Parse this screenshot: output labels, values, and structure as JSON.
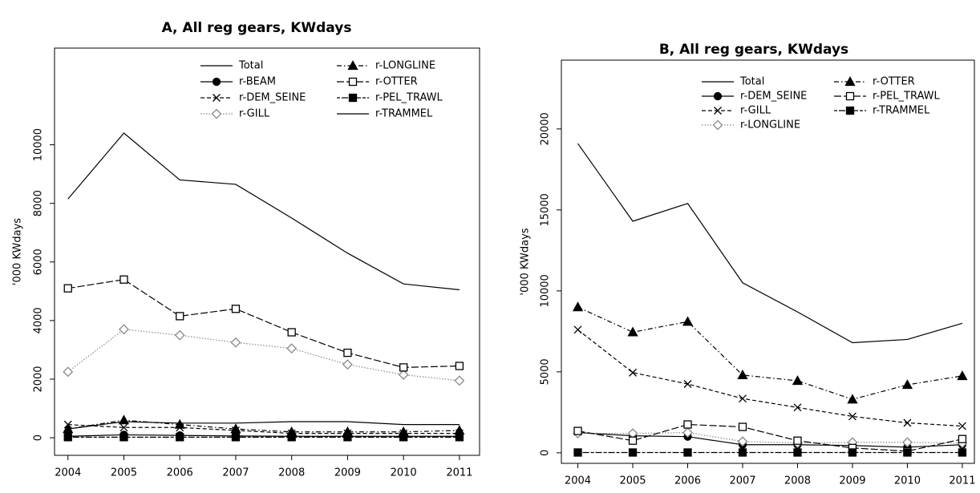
{
  "chart_data": [
    {
      "type": "line",
      "title": "A, All reg gears, KWdays",
      "y_label": "'000 KWdays",
      "x": [
        2004,
        2005,
        2006,
        2007,
        2008,
        2009,
        2010,
        2011
      ],
      "xlim": [
        2003.76,
        2011.36
      ],
      "xticks": [
        2004,
        2005,
        2006,
        2007,
        2008,
        2009,
        2010,
        2011
      ],
      "ylim": [
        -600,
        13300
      ],
      "yticks": [
        0,
        2000,
        4000,
        6000,
        8000,
        10000
      ],
      "grid": false,
      "series": [
        {
          "name": "Total",
          "color": "#000000",
          "marker": "none",
          "dash": "solid",
          "values": [
            8150,
            10400,
            8800,
            8650,
            7500,
            6300,
            5250,
            5050
          ]
        },
        {
          "name": "r-BEAM",
          "color": "#000000",
          "marker": "circle-filled",
          "dash": "solid",
          "values": [
            50,
            100,
            80,
            60,
            50,
            50,
            50,
            50
          ]
        },
        {
          "name": "r-DEM_SEINE",
          "color": "#000000",
          "marker": "cross",
          "dash": "dashed",
          "values": [
            450,
            350,
            350,
            250,
            150,
            150,
            150,
            150
          ]
        },
        {
          "name": "r-GILL",
          "color": "#888888",
          "marker": "diamond",
          "dash": "dotted",
          "values": [
            2250,
            3700,
            3500,
            3250,
            3050,
            2500,
            2150,
            1950
          ]
        },
        {
          "name": "r-LONGLINE",
          "color": "#000000",
          "marker": "triangle-filled",
          "dash": "dashdot",
          "values": [
            300,
            600,
            450,
            300,
            200,
            200,
            200,
            250
          ]
        },
        {
          "name": "r-OTTER",
          "color": "#000000",
          "marker": "square-open",
          "dash": "longdash",
          "values": [
            5100,
            5400,
            4150,
            4400,
            3600,
            2900,
            2400,
            2450
          ]
        },
        {
          "name": "r-PEL_TRAWL",
          "color": "#000000",
          "marker": "square-filled",
          "dash": "twodash",
          "values": [
            20,
            20,
            20,
            20,
            20,
            20,
            20,
            20
          ]
        },
        {
          "name": "r-TRAMMEL",
          "color": "#000000",
          "marker": "none",
          "dash": "solid",
          "values": [
            300,
            550,
            500,
            500,
            550,
            550,
            450,
            450
          ]
        }
      ]
    },
    {
      "type": "line",
      "title": "B, All reg gears, KWdays",
      "y_label": "'000 KWdays",
      "x": [
        2004,
        2005,
        2006,
        2007,
        2008,
        2009,
        2010,
        2011
      ],
      "xlim": [
        2003.7,
        2011.22
      ],
      "xticks": [
        2004,
        2005,
        2006,
        2007,
        2008,
        2009,
        2010,
        2011
      ],
      "ylim": [
        -650,
        24250
      ],
      "yticks": [
        0,
        5000,
        10000,
        15000,
        20000
      ],
      "grid": false,
      "series": [
        {
          "name": "Total",
          "color": "#000000",
          "marker": "none",
          "dash": "solid",
          "values": [
            19100,
            14300,
            15400,
            10500,
            8700,
            6800,
            7000,
            8000
          ]
        },
        {
          "name": "r-DEM_SEINE",
          "color": "#000000",
          "marker": "circle-filled",
          "dash": "solid",
          "values": [
            1250,
            1050,
            1000,
            500,
            500,
            450,
            350,
            500
          ]
        },
        {
          "name": "r-GILL",
          "color": "#000000",
          "marker": "cross",
          "dash": "dashed",
          "values": [
            7600,
            4950,
            4250,
            3350,
            2800,
            2250,
            1850,
            1650
          ]
        },
        {
          "name": "r-LONGLINE",
          "color": "#888888",
          "marker": "diamond",
          "dash": "dotted",
          "values": [
            1200,
            1200,
            1250,
            700,
            600,
            650,
            650,
            600
          ]
        },
        {
          "name": "r-OTTER",
          "color": "#000000",
          "marker": "triangle-filled",
          "dash": "dashdot",
          "values": [
            9000,
            7450,
            8100,
            4800,
            4450,
            3300,
            4200,
            4750
          ]
        },
        {
          "name": "r-PEL_TRAWL",
          "color": "#000000",
          "marker": "square-open",
          "dash": "longdash",
          "values": [
            1350,
            750,
            1750,
            1600,
            750,
            300,
            100,
            850
          ]
        },
        {
          "name": "r-TRAMMEL",
          "color": "#000000",
          "marker": "square-filled",
          "dash": "twodash",
          "values": [
            20,
            20,
            20,
            20,
            20,
            20,
            20,
            20
          ]
        }
      ]
    }
  ]
}
